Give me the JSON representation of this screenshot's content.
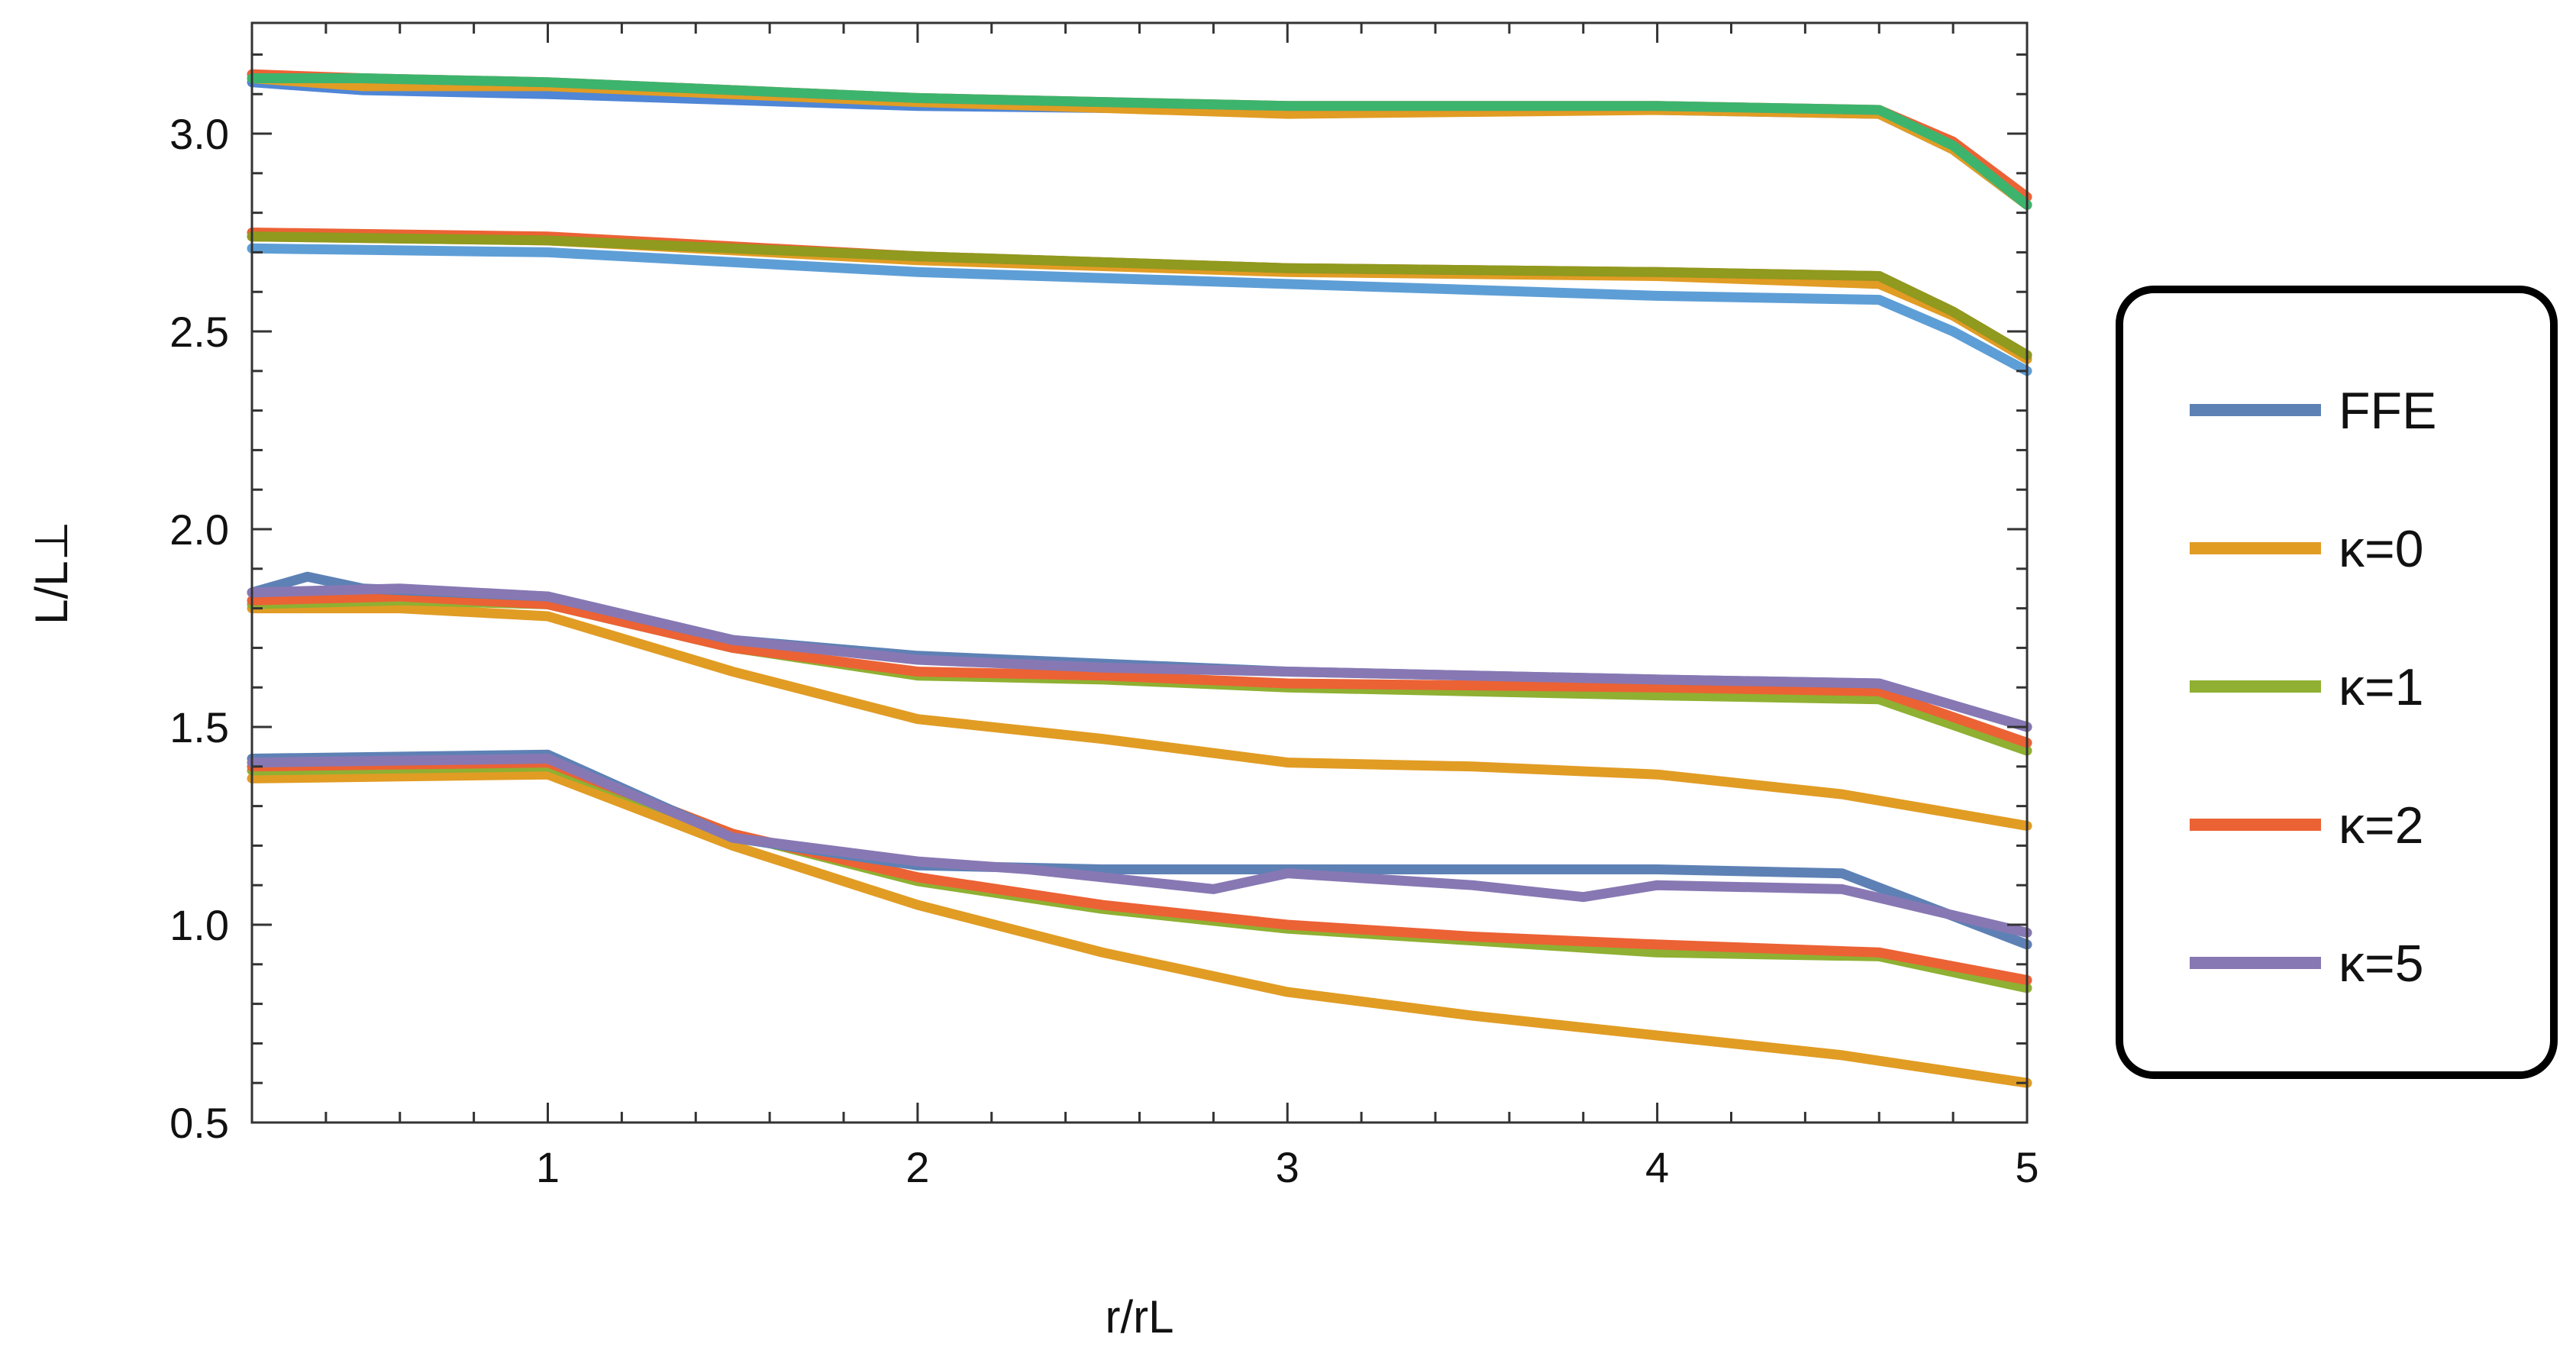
{
  "chart_data": {
    "type": "line",
    "title": "",
    "xlabel": "r/r_L",
    "ylabel": "L/L_⊥",
    "xlim": [
      0.2,
      5.0
    ],
    "ylim": [
      0.5,
      3.28
    ],
    "x_ticks": [
      {
        "value": 1,
        "label": "1"
      },
      {
        "value": 2,
        "label": "2"
      },
      {
        "value": 3,
        "label": "3"
      },
      {
        "value": 4,
        "label": "4"
      },
      {
        "value": 5,
        "label": "5"
      }
    ],
    "y_ticks": [
      {
        "value": 0.5,
        "label": "0.5"
      },
      {
        "value": 1.0,
        "label": "1.0"
      },
      {
        "value": 1.5,
        "label": "1.5"
      },
      {
        "value": 2.0,
        "label": "2.0"
      },
      {
        "value": 2.5,
        "label": "2.5"
      },
      {
        "value": 3.0,
        "label": "3.0"
      }
    ],
    "grid": false,
    "legend_position": "right",
    "legend": [
      {
        "name": "FFE",
        "label": "FFE",
        "color": "#5E81B5"
      },
      {
        "name": "k0",
        "label": "κ=0",
        "color": "#E19C24"
      },
      {
        "name": "k1",
        "label": "κ=1",
        "color": "#8FB032"
      },
      {
        "name": "k2",
        "label": "κ=2",
        "color": "#EB6235"
      },
      {
        "name": "k5",
        "label": "κ=5",
        "color": "#8778B3"
      }
    ],
    "series": [
      {
        "name": "FFE",
        "group": "3.1",
        "color": "#4F86D6",
        "points": [
          [
            0.2,
            3.13
          ],
          [
            0.5,
            3.11
          ],
          [
            1.0,
            3.1
          ],
          [
            2.0,
            3.07
          ],
          [
            3.0,
            3.06
          ],
          [
            4.0,
            3.06
          ],
          [
            4.6,
            3.05
          ],
          [
            4.8,
            2.96
          ],
          [
            5.0,
            2.82
          ]
        ]
      },
      {
        "name": "κ=0",
        "group": "3.1",
        "color": "#E19C24",
        "points": [
          [
            0.2,
            3.14
          ],
          [
            0.5,
            3.12
          ],
          [
            1.0,
            3.12
          ],
          [
            2.0,
            3.08
          ],
          [
            3.0,
            3.05
          ],
          [
            4.0,
            3.06
          ],
          [
            4.6,
            3.05
          ],
          [
            4.8,
            2.96
          ],
          [
            5.0,
            2.82
          ]
        ]
      },
      {
        "name": "κ=2",
        "group": "3.1",
        "color": "#EB6235",
        "points": [
          [
            0.2,
            3.15
          ],
          [
            0.5,
            3.14
          ],
          [
            1.0,
            3.13
          ],
          [
            2.0,
            3.09
          ],
          [
            3.0,
            3.07
          ],
          [
            4.0,
            3.07
          ],
          [
            4.6,
            3.06
          ],
          [
            4.8,
            2.98
          ],
          [
            5.0,
            2.84
          ]
        ]
      },
      {
        "name": "κ=1",
        "group": "3.1",
        "color": "#3DB46D",
        "points": [
          [
            0.2,
            3.14
          ],
          [
            0.5,
            3.14
          ],
          [
            1.0,
            3.13
          ],
          [
            2.0,
            3.09
          ],
          [
            3.0,
            3.07
          ],
          [
            4.0,
            3.07
          ],
          [
            4.6,
            3.06
          ],
          [
            4.8,
            2.97
          ],
          [
            5.0,
            2.82
          ]
        ]
      },
      {
        "name": "FFE",
        "group": "2.7",
        "color": "#5E9ED6",
        "points": [
          [
            0.2,
            2.71
          ],
          [
            1.0,
            2.7
          ],
          [
            2.0,
            2.65
          ],
          [
            3.0,
            2.62
          ],
          [
            4.0,
            2.59
          ],
          [
            4.6,
            2.58
          ],
          [
            4.8,
            2.5
          ],
          [
            5.0,
            2.4
          ]
        ]
      },
      {
        "name": "κ=0",
        "group": "2.7",
        "color": "#E19C24",
        "points": [
          [
            0.2,
            2.74
          ],
          [
            1.0,
            2.73
          ],
          [
            2.0,
            2.68
          ],
          [
            3.0,
            2.65
          ],
          [
            4.0,
            2.64
          ],
          [
            4.6,
            2.62
          ],
          [
            4.8,
            2.54
          ],
          [
            5.0,
            2.43
          ]
        ]
      },
      {
        "name": "κ=2",
        "group": "2.7",
        "color": "#EB6235",
        "points": [
          [
            0.2,
            2.75
          ],
          [
            1.0,
            2.74
          ],
          [
            2.0,
            2.69
          ],
          [
            3.0,
            2.66
          ],
          [
            4.0,
            2.65
          ],
          [
            4.6,
            2.64
          ],
          [
            4.8,
            2.55
          ],
          [
            5.0,
            2.44
          ]
        ]
      },
      {
        "name": "κ=1",
        "group": "2.7",
        "color": "#8F9A1E",
        "points": [
          [
            0.2,
            2.74
          ],
          [
            1.0,
            2.73
          ],
          [
            2.0,
            2.69
          ],
          [
            3.0,
            2.66
          ],
          [
            4.0,
            2.65
          ],
          [
            4.6,
            2.64
          ],
          [
            4.8,
            2.55
          ],
          [
            5.0,
            2.44
          ]
        ]
      },
      {
        "name": "κ=0",
        "group": "1.8",
        "color": "#E19C24",
        "points": [
          [
            0.2,
            1.8
          ],
          [
            0.6,
            1.8
          ],
          [
            1.0,
            1.78
          ],
          [
            1.5,
            1.64
          ],
          [
            2.0,
            1.52
          ],
          [
            2.5,
            1.47
          ],
          [
            3.0,
            1.41
          ],
          [
            3.5,
            1.4
          ],
          [
            4.0,
            1.38
          ],
          [
            4.5,
            1.33
          ],
          [
            5.0,
            1.25
          ]
        ]
      },
      {
        "name": "κ=1",
        "group": "1.8",
        "color": "#8FB032",
        "points": [
          [
            0.2,
            1.81
          ],
          [
            0.6,
            1.82
          ],
          [
            1.0,
            1.81
          ],
          [
            1.5,
            1.7
          ],
          [
            2.0,
            1.63
          ],
          [
            2.5,
            1.62
          ],
          [
            3.0,
            1.6
          ],
          [
            4.0,
            1.58
          ],
          [
            4.6,
            1.57
          ],
          [
            5.0,
            1.44
          ]
        ]
      },
      {
        "name": "κ=2",
        "group": "1.8",
        "color": "#EB6235",
        "points": [
          [
            0.2,
            1.82
          ],
          [
            0.6,
            1.83
          ],
          [
            1.0,
            1.81
          ],
          [
            1.5,
            1.7
          ],
          [
            2.0,
            1.64
          ],
          [
            2.5,
            1.63
          ],
          [
            3.0,
            1.61
          ],
          [
            4.0,
            1.6
          ],
          [
            4.6,
            1.59
          ],
          [
            5.0,
            1.46
          ]
        ]
      },
      {
        "name": "FFE",
        "group": "1.8",
        "color": "#5E81B5",
        "points": [
          [
            0.2,
            1.84
          ],
          [
            0.35,
            1.88
          ],
          [
            0.5,
            1.85
          ],
          [
            1.0,
            1.83
          ],
          [
            1.5,
            1.72
          ],
          [
            2.0,
            1.68
          ],
          [
            2.5,
            1.66
          ],
          [
            3.0,
            1.64
          ],
          [
            4.0,
            1.62
          ],
          [
            4.6,
            1.61
          ],
          [
            5.0,
            1.5
          ]
        ]
      },
      {
        "name": "κ=5",
        "group": "1.8",
        "color": "#8778B3",
        "points": [
          [
            0.2,
            1.84
          ],
          [
            0.6,
            1.85
          ],
          [
            1.0,
            1.83
          ],
          [
            1.5,
            1.72
          ],
          [
            2.0,
            1.67
          ],
          [
            2.5,
            1.65
          ],
          [
            3.0,
            1.64
          ],
          [
            4.0,
            1.62
          ],
          [
            4.6,
            1.61
          ],
          [
            5.0,
            1.5
          ]
        ]
      },
      {
        "name": "κ=0",
        "group": "1.4",
        "color": "#E19C24",
        "points": [
          [
            0.2,
            1.37
          ],
          [
            1.0,
            1.38
          ],
          [
            1.5,
            1.2
          ],
          [
            2.0,
            1.05
          ],
          [
            2.5,
            0.93
          ],
          [
            3.0,
            0.83
          ],
          [
            3.5,
            0.77
          ],
          [
            4.0,
            0.72
          ],
          [
            4.5,
            0.67
          ],
          [
            5.0,
            0.6
          ]
        ]
      },
      {
        "name": "κ=1",
        "group": "1.4",
        "color": "#8FB032",
        "points": [
          [
            0.2,
            1.39
          ],
          [
            1.0,
            1.4
          ],
          [
            1.5,
            1.23
          ],
          [
            2.0,
            1.11
          ],
          [
            2.5,
            1.04
          ],
          [
            3.0,
            0.99
          ],
          [
            3.5,
            0.96
          ],
          [
            4.0,
            0.93
          ],
          [
            4.6,
            0.92
          ],
          [
            5.0,
            0.84
          ]
        ]
      },
      {
        "name": "κ=2",
        "group": "1.4",
        "color": "#EB6235",
        "points": [
          [
            0.2,
            1.4
          ],
          [
            1.0,
            1.41
          ],
          [
            1.5,
            1.23
          ],
          [
            2.0,
            1.12
          ],
          [
            2.5,
            1.05
          ],
          [
            3.0,
            1.0
          ],
          [
            3.5,
            0.97
          ],
          [
            4.0,
            0.95
          ],
          [
            4.6,
            0.93
          ],
          [
            5.0,
            0.86
          ]
        ]
      },
      {
        "name": "FFE",
        "group": "1.4",
        "color": "#5E81B5",
        "points": [
          [
            0.2,
            1.42
          ],
          [
            1.0,
            1.43
          ],
          [
            1.5,
            1.22
          ],
          [
            2.0,
            1.15
          ],
          [
            2.5,
            1.14
          ],
          [
            3.0,
            1.14
          ],
          [
            3.5,
            1.14
          ],
          [
            4.0,
            1.14
          ],
          [
            4.5,
            1.13
          ],
          [
            5.0,
            0.95
          ]
        ]
      },
      {
        "name": "κ=5",
        "group": "1.4",
        "color": "#8778B3",
        "points": [
          [
            0.2,
            1.41
          ],
          [
            1.0,
            1.42
          ],
          [
            1.5,
            1.22
          ],
          [
            2.0,
            1.16
          ],
          [
            2.3,
            1.14
          ],
          [
            2.8,
            1.09
          ],
          [
            3.0,
            1.13
          ],
          [
            3.5,
            1.1
          ],
          [
            3.8,
            1.07
          ],
          [
            4.0,
            1.1
          ],
          [
            4.5,
            1.09
          ],
          [
            5.0,
            0.98
          ]
        ]
      }
    ]
  }
}
